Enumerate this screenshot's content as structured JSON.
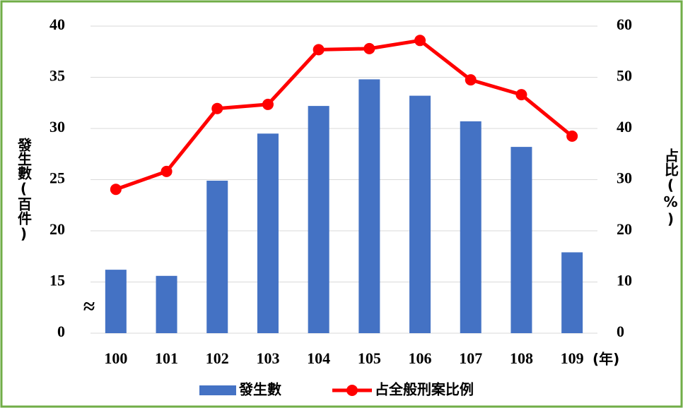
{
  "chart_data": {
    "type": "bar_line",
    "categories": [
      "100",
      "101",
      "102",
      "103",
      "104",
      "105",
      "106",
      "107",
      "108",
      "109"
    ],
    "x_unit_label": "(年)",
    "ylabel": "發生數(百件)",
    "y2label": "占比(%)",
    "series": [
      {
        "name": "發生數",
        "type": "bar",
        "color": "#4472c4",
        "values": [
          16.2,
          15.6,
          24.9,
          29.5,
          32.2,
          34.8,
          33.2,
          30.7,
          28.2,
          17.9
        ]
      },
      {
        "name": "占全般刑案比例",
        "type": "line",
        "axis": "y2",
        "color": "#ff0000",
        "values": [
          28.1,
          31.6,
          43.9,
          44.7,
          55.4,
          55.6,
          57.2,
          49.5,
          46.6,
          38.5
        ]
      }
    ],
    "ylim": [
      0,
      40
    ],
    "yticks": [
      0,
      15,
      20,
      25,
      30,
      35,
      40
    ],
    "ybreak": [
      0,
      15
    ],
    "axis_break_symbol": "≈",
    "y2lim": [
      0,
      60
    ],
    "y2ticks": [
      0,
      10,
      20,
      30,
      40,
      50,
      60
    ],
    "grid": true,
    "legend": "bottom"
  }
}
